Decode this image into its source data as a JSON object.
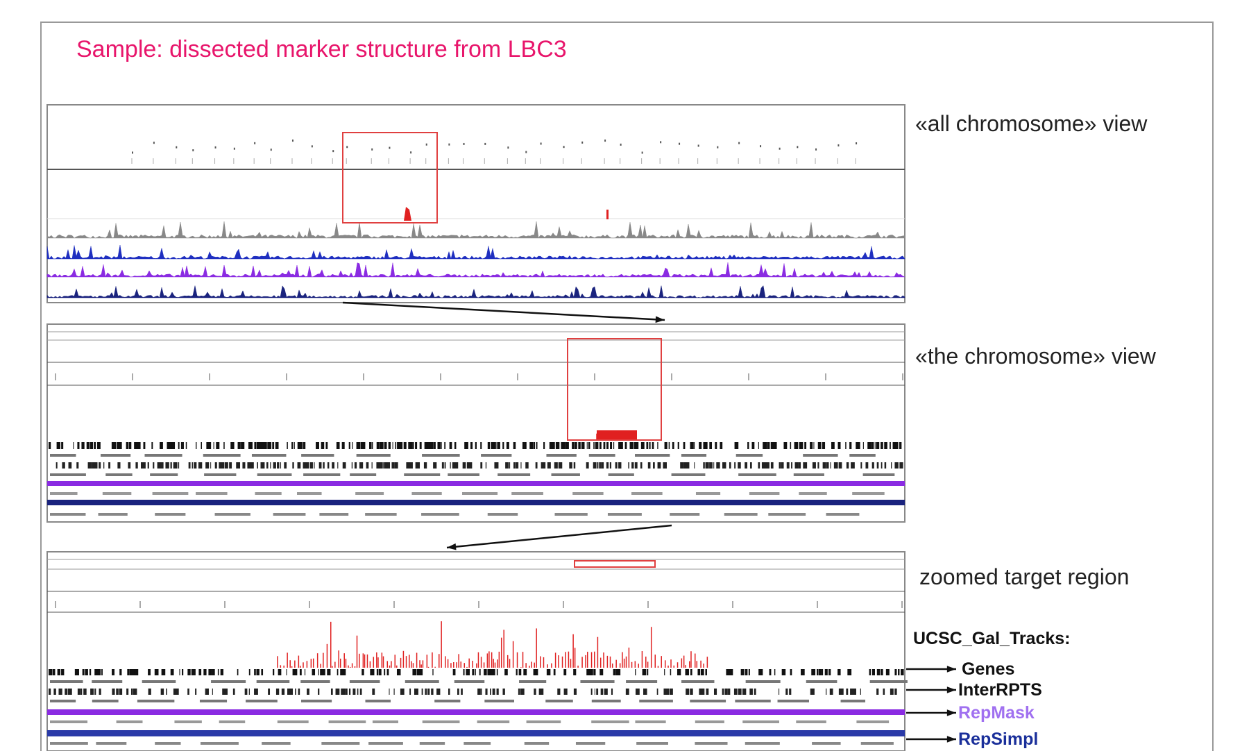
{
  "header": {
    "title": "Sample: dissected marker structure from LBC3"
  },
  "views": [
    {
      "label": "«all chromosome» view"
    },
    {
      "label": "«the chromosome» view"
    },
    {
      "label": "zoomed target region"
    }
  ],
  "tracks": {
    "heading": "UCSC_Gal_Tracks:",
    "items": [
      {
        "label": "Genes"
      },
      {
        "label": "InterRPTS"
      },
      {
        "label": "RepMask"
      },
      {
        "label": "RepSimpl"
      }
    ]
  }
}
